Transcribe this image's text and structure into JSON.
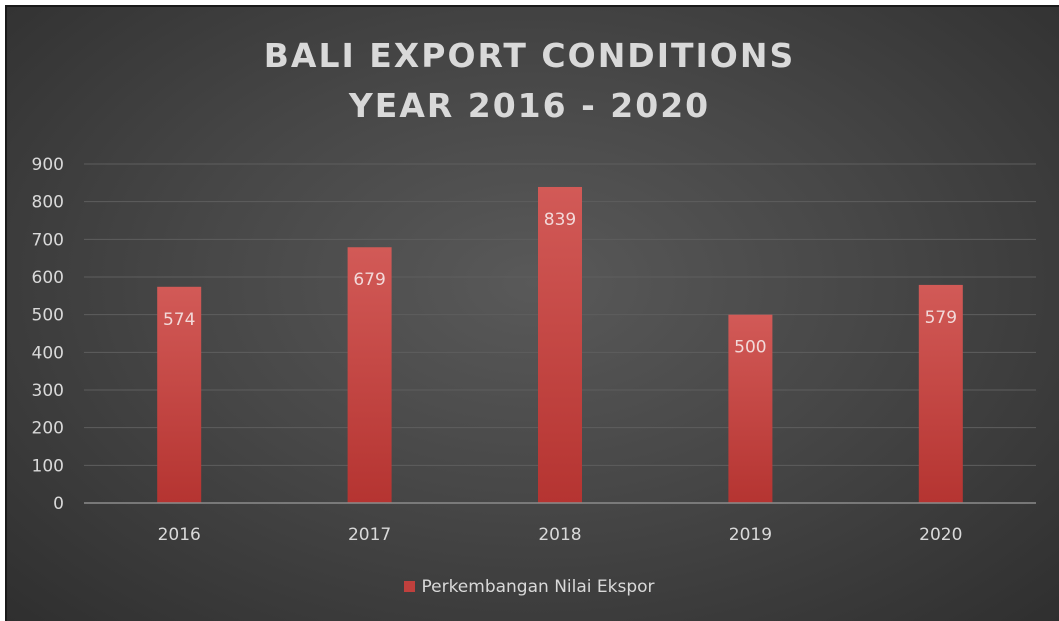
{
  "chart_data": {
    "type": "bar",
    "title": "BALI EXPORT CONDITIONS",
    "subtitle": "YEAR 2016 - 2020",
    "categories": [
      "2016",
      "2017",
      "2018",
      "2019",
      "2020"
    ],
    "series": [
      {
        "name": "Perkembangan Nilai Ekspor",
        "values": [
          574,
          679,
          839,
          500,
          579
        ],
        "color": "#c0403d"
      }
    ],
    "data_labels": [
      "574",
      "679",
      "839",
      "500",
      "579"
    ],
    "y_ticks": [
      "0",
      "100",
      "200",
      "300",
      "400",
      "500",
      "600",
      "700",
      "800",
      "900"
    ],
    "ylim": [
      0,
      900
    ],
    "grid": true,
    "legend_position": "bottom",
    "background": "#474747",
    "text_color": "#d9d9d9"
  }
}
